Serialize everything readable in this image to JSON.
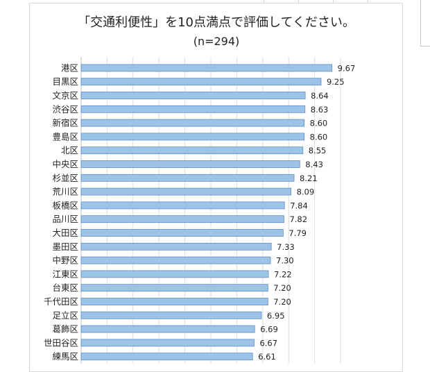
{
  "chart_data": {
    "type": "bar",
    "orientation": "horizontal",
    "title": "「交通利便性」を10点満点で評価してください。",
    "subtitle": "(n=294)",
    "xlim": [
      0,
      10
    ],
    "grid": true,
    "categories": [
      "港区",
      "目黒区",
      "文京区",
      "渋谷区",
      "新宿区",
      "豊島区",
      "北区",
      "中央区",
      "杉並区",
      "荒川区",
      "板橋区",
      "品川区",
      "大田区",
      "墨田区",
      "中野区",
      "江東区",
      "台東区",
      "千代田区",
      "足立区",
      "葛飾区",
      "世田谷区",
      "練馬区"
    ],
    "values": [
      9.67,
      9.25,
      8.64,
      8.63,
      8.6,
      8.6,
      8.55,
      8.43,
      8.21,
      8.09,
      7.84,
      7.82,
      7.79,
      7.33,
      7.3,
      7.22,
      7.2,
      7.2,
      6.95,
      6.69,
      6.67,
      6.61
    ],
    "value_labels": [
      "9.67",
      "9.25",
      "8.64",
      "8.63",
      "8.60",
      "8.60",
      "8.55",
      "8.43",
      "8.21",
      "8.09",
      "7.84",
      "7.82",
      "7.79",
      "7.33",
      "7.30",
      "7.22",
      "7.20",
      "7.20",
      "6.95",
      "6.69",
      "6.67",
      "6.61"
    ],
    "bar_color": "#9dc3e6",
    "bar_edge_color": "#5b8fc7"
  }
}
